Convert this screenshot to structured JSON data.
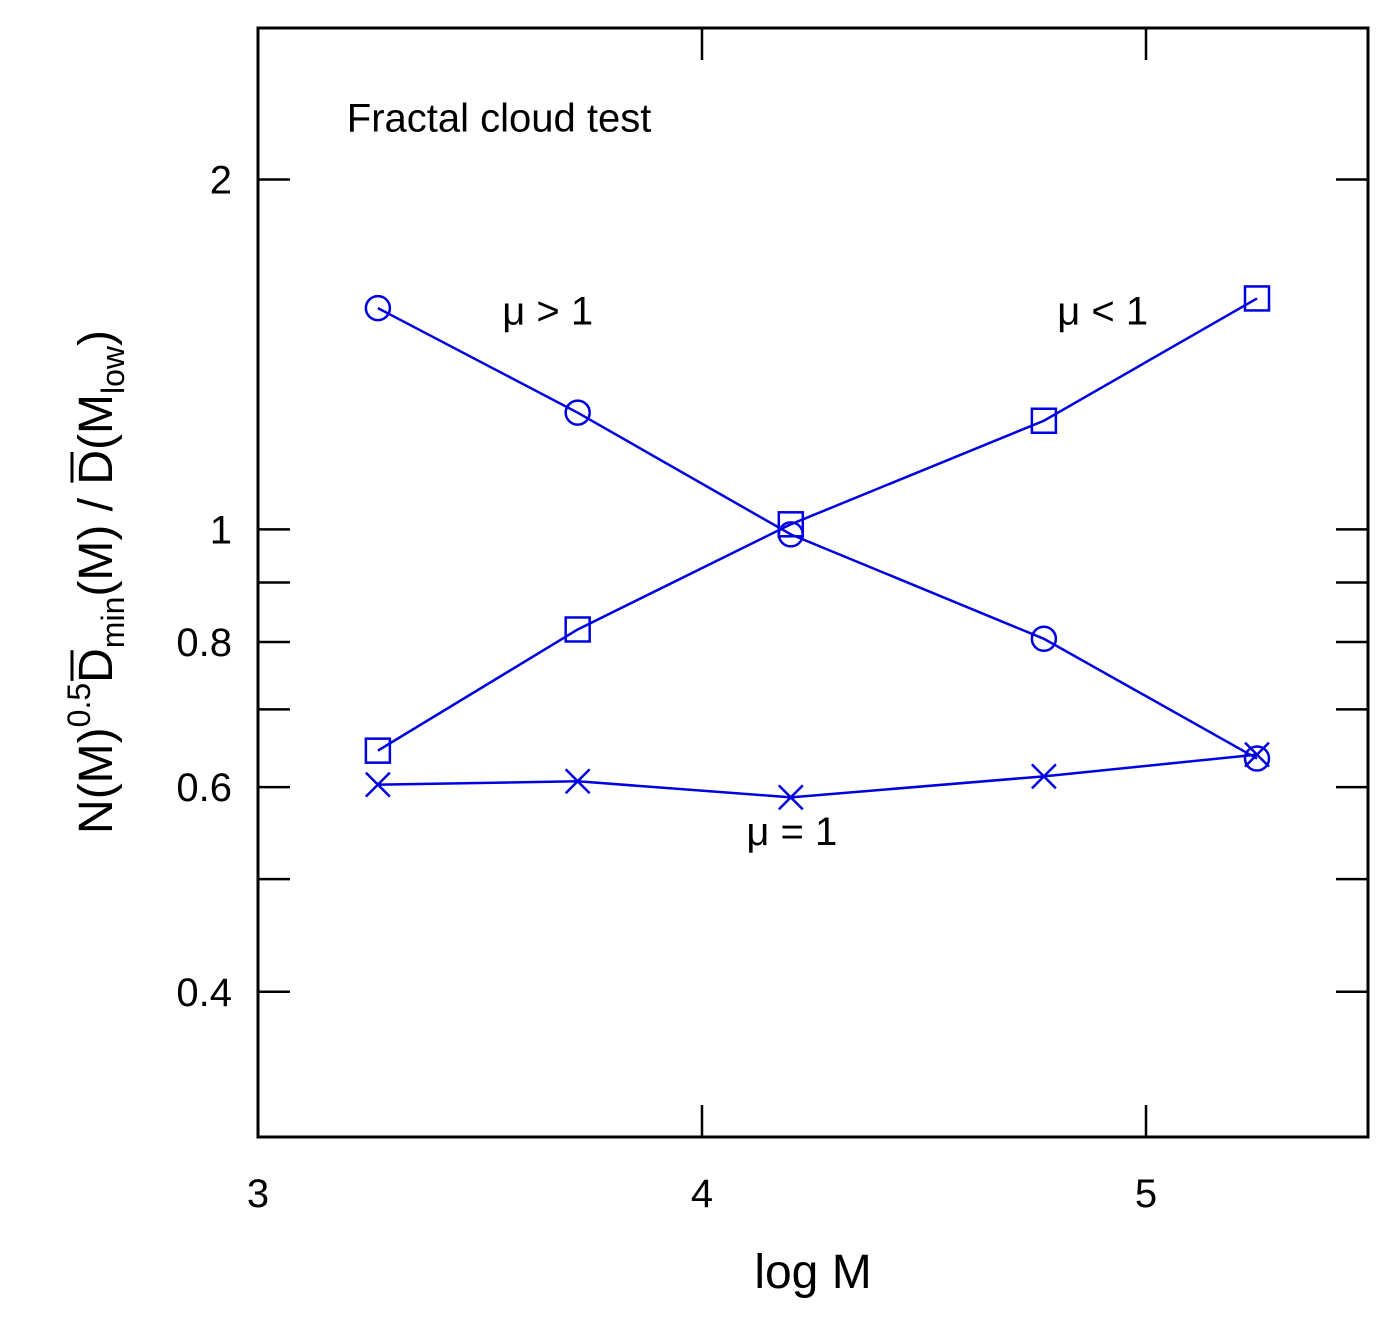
{
  "chart_data": {
    "type": "line",
    "title": "",
    "xlabel": "log M",
    "ylabel": {
      "part1": "N(M)",
      "exp": "0.5",
      "d1": "D",
      "sub1": "min",
      "part2": "(M) / ",
      "d2": "D",
      "part3": "(M",
      "sub2": "low",
      "part4": ")"
    },
    "xlim": [
      3,
      5.5
    ],
    "ylim": [
      0.3,
      2.7
    ],
    "y_scale": "log",
    "grid": false,
    "x_ticks": [
      {
        "value": 3,
        "label": "3"
      },
      {
        "value": 4,
        "label": "4"
      },
      {
        "value": 5,
        "label": "5"
      }
    ],
    "y_ticks": [
      {
        "value": 0.4,
        "label": "0.4"
      },
      {
        "value": 0.5,
        "label": ""
      },
      {
        "value": 0.6,
        "label": "0.6"
      },
      {
        "value": 0.7,
        "label": ""
      },
      {
        "value": 0.8,
        "label": "0.8"
      },
      {
        "value": 0.9,
        "label": ""
      },
      {
        "value": 1,
        "label": "1"
      },
      {
        "value": 2,
        "label": "2"
      }
    ],
    "annotations": [
      {
        "text": "Fractal cloud test",
        "x": 3.2,
        "y": 2.2
      },
      {
        "text": "μ > 1",
        "x": 3.55,
        "y": 1.5
      },
      {
        "text": "μ < 1",
        "x": 4.8,
        "y": 1.5
      },
      {
        "text": "μ = 1",
        "x": 4.1,
        "y": 0.535
      }
    ],
    "series": [
      {
        "marker": "circle",
        "x": [
          3.27,
          3.72,
          4.2,
          4.77,
          5.25
        ],
        "y": [
          1.55,
          1.26,
          0.99,
          0.805,
          0.635
        ]
      },
      {
        "marker": "square",
        "x": [
          3.27,
          3.72,
          4.2,
          4.77,
          5.25
        ],
        "y": [
          0.645,
          0.82,
          1.01,
          1.24,
          1.58
        ]
      },
      {
        "marker": "cross",
        "x": [
          3.27,
          3.72,
          4.2,
          4.77,
          5.25
        ],
        "y": [
          0.603,
          0.607,
          0.588,
          0.613,
          0.64
        ]
      }
    ],
    "colors": {
      "series": "#0000e0",
      "axis": "#000000"
    }
  }
}
